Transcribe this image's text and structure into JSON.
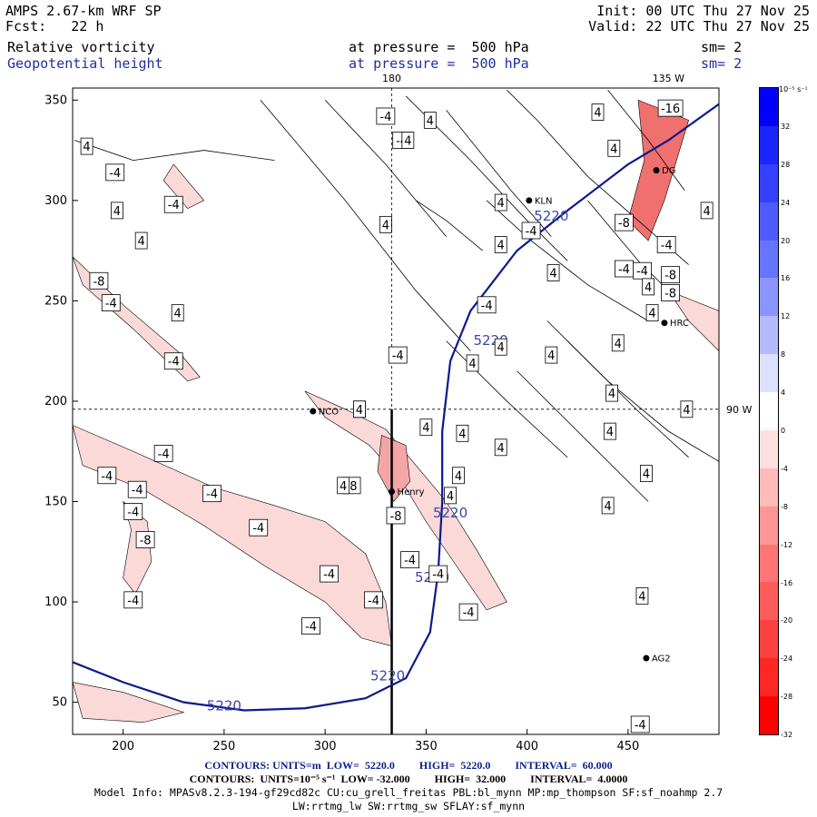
{
  "header": {
    "model": "AMPS 2.67-km WRF SP",
    "fcst": "Fcst:   22 h",
    "init": "Init: 00 UTC Thu 27 Nov 25",
    "valid": "Valid: 22 UTC Thu 27 Nov 25",
    "field1": "Relative vorticity",
    "field1_level": "at pressure =  500 hPa",
    "field1_sm": "sm= 2",
    "field2": "Geopotential height",
    "field2_level": "at pressure =  500 hPa",
    "field2_sm": "sm= 2"
  },
  "map": {
    "x_ticks": [
      "200",
      "250",
      "300",
      "350",
      "400",
      "450"
    ],
    "y_ticks": [
      "50",
      "100",
      "150",
      "200",
      "250",
      "300",
      "350"
    ],
    "x_range": [
      175,
      495
    ],
    "y_range": [
      34,
      356
    ],
    "top_labels": [
      "180",
      "135 W"
    ],
    "right_label": "90 W",
    "lon_180_x": 333,
    "lat_90w_y": 196,
    "stations": [
      {
        "name": "KLN",
        "x": 401,
        "y": 300
      },
      {
        "name": "HRC",
        "x": 468,
        "y": 239
      },
      {
        "name": "NCO",
        "x": 294,
        "y": 195
      },
      {
        "name": "Henry",
        "x": 333,
        "y": 155
      },
      {
        "name": "AG2",
        "x": 459,
        "y": 72
      },
      {
        "name": "DG",
        "x": 464,
        "y": 315
      }
    ],
    "height_contour_label": "5220",
    "height_contour_color": "#0a1a8c",
    "vorticity_labels": [
      {
        "t": "-4",
        "x": 330,
        "y": 342
      },
      {
        "t": "4",
        "x": 352,
        "y": 340
      },
      {
        "t": "-4",
        "x": 338,
        "y": 330
      },
      {
        "t": "4",
        "x": 341,
        "y": 330
      },
      {
        "t": "4",
        "x": 182,
        "y": 327
      },
      {
        "t": "-4",
        "x": 196,
        "y": 314
      },
      {
        "t": "4",
        "x": 197,
        "y": 295
      },
      {
        "t": "-4",
        "x": 225,
        "y": 298
      },
      {
        "t": "4",
        "x": 209,
        "y": 280
      },
      {
        "t": "4",
        "x": 330,
        "y": 288
      },
      {
        "t": "4",
        "x": 387,
        "y": 299
      },
      {
        "t": "-8",
        "x": 188,
        "y": 260
      },
      {
        "t": "-4",
        "x": 194,
        "y": 249
      },
      {
        "t": "4",
        "x": 227,
        "y": 244
      },
      {
        "t": "-4",
        "x": 225,
        "y": 220
      },
      {
        "t": "-4",
        "x": 336,
        "y": 223
      },
      {
        "t": "4",
        "x": 373,
        "y": 219
      },
      {
        "t": "4",
        "x": 387,
        "y": 227
      },
      {
        "t": "4",
        "x": 412,
        "y": 223
      },
      {
        "t": "4",
        "x": 445,
        "y": 229
      },
      {
        "t": "4",
        "x": 462,
        "y": 244
      },
      {
        "t": "-4",
        "x": 380,
        "y": 248
      },
      {
        "t": "4",
        "x": 350,
        "y": 187
      },
      {
        "t": "4",
        "x": 368,
        "y": 184
      },
      {
        "t": "-4",
        "x": 220,
        "y": 174
      },
      {
        "t": "-4",
        "x": 192,
        "y": 163
      },
      {
        "t": "4",
        "x": 317,
        "y": 196
      },
      {
        "t": "4",
        "x": 387,
        "y": 177
      },
      {
        "t": "4",
        "x": 366,
        "y": 163
      },
      {
        "t": "4",
        "x": 459,
        "y": 164
      },
      {
        "t": "4",
        "x": 442,
        "y": 204
      },
      {
        "t": "4",
        "x": 441,
        "y": 185
      },
      {
        "t": "4",
        "x": 479,
        "y": 196
      },
      {
        "t": "-4",
        "x": 207,
        "y": 156
      },
      {
        "t": "-4",
        "x": 244,
        "y": 154
      },
      {
        "t": "-8",
        "x": 313,
        "y": 158
      },
      {
        "t": "4",
        "x": 309,
        "y": 158
      },
      {
        "t": "-8",
        "x": 335,
        "y": 143
      },
      {
        "t": "4",
        "x": 362,
        "y": 153
      },
      {
        "t": "4",
        "x": 440,
        "y": 148
      },
      {
        "t": "-4",
        "x": 205,
        "y": 145
      },
      {
        "t": "-8",
        "x": 211,
        "y": 131
      },
      {
        "t": "-4",
        "x": 267,
        "y": 137
      },
      {
        "t": "-4",
        "x": 342,
        "y": 121
      },
      {
        "t": "-4",
        "x": 302,
        "y": 114
      },
      {
        "t": "-4",
        "x": 356,
        "y": 114
      },
      {
        "t": "-4",
        "x": 205,
        "y": 101
      },
      {
        "t": "-4",
        "x": 324,
        "y": 101
      },
      {
        "t": "-4",
        "x": 371,
        "y": 95
      },
      {
        "t": "4",
        "x": 457,
        "y": 103
      },
      {
        "t": "-4",
        "x": 293,
        "y": 88
      },
      {
        "t": "-8",
        "x": 448,
        "y": 289
      },
      {
        "t": "-4",
        "x": 448,
        "y": 266
      },
      {
        "t": "-4",
        "x": 457,
        "y": 265
      },
      {
        "t": "4",
        "x": 460,
        "y": 257
      },
      {
        "t": "-8",
        "x": 471,
        "y": 254
      },
      {
        "t": "-16",
        "x": 471,
        "y": 346
      },
      {
        "t": "-4",
        "x": 469,
        "y": 278
      },
      {
        "t": "-8",
        "x": 471,
        "y": 263
      },
      {
        "t": "4",
        "x": 489,
        "y": 295
      },
      {
        "t": "-4",
        "x": 402,
        "y": 285
      },
      {
        "t": "4",
        "x": 413,
        "y": 264
      },
      {
        "t": "-4",
        "x": 456,
        "y": 39
      },
      {
        "t": "4",
        "x": 443,
        "y": 326
      },
      {
        "t": "4",
        "x": 435,
        "y": 344
      },
      {
        "t": "4",
        "x": 387,
        "y": 278
      },
      {
        "t": "4",
        "x": 317,
        "y": 196
      }
    ]
  },
  "colorbar": {
    "unit": "10⁻⁵ s⁻¹",
    "ticks": [
      "32",
      "28",
      "24",
      "20",
      "16",
      "12",
      "8",
      "4",
      "0",
      "-4",
      "-8",
      "-12",
      "-16",
      "-20",
      "-24",
      "-28",
      "-32"
    ],
    "colors": [
      "#0000ff",
      "#1a26ff",
      "#3340ff",
      "#4d5cff",
      "#6675ff",
      "#8a95ff",
      "#b4baff",
      "#dde0ff",
      "#ffffff",
      "#ffe0e0",
      "#ffbaba",
      "#ff9595",
      "#ff7575",
      "#ff5c5c",
      "#ff4040",
      "#ff2626",
      "#ff0000"
    ]
  },
  "footer": {
    "line1_contours": "CONTOURS: UNITS=m  LOW=  5220.0         HIGH=  5220.0         INTERVAL=  60.000",
    "line2_contours": "CONTOURS:  UNITS=10⁻⁵ s⁻¹  LOW= -32.000         HIGH=  32.000         INTERVAL=  4.0000",
    "model_info": "Model Info: MPASv8.2.3-194-gf29cd82c CU:cu_grell_freitas PBL:bl_mynn MP:mp_thompson SF:sf_noahmp 2.7",
    "model_info2": "LW:rrtmg_lw SW:rrtmg_sw SFLAY:sf_mynn"
  }
}
